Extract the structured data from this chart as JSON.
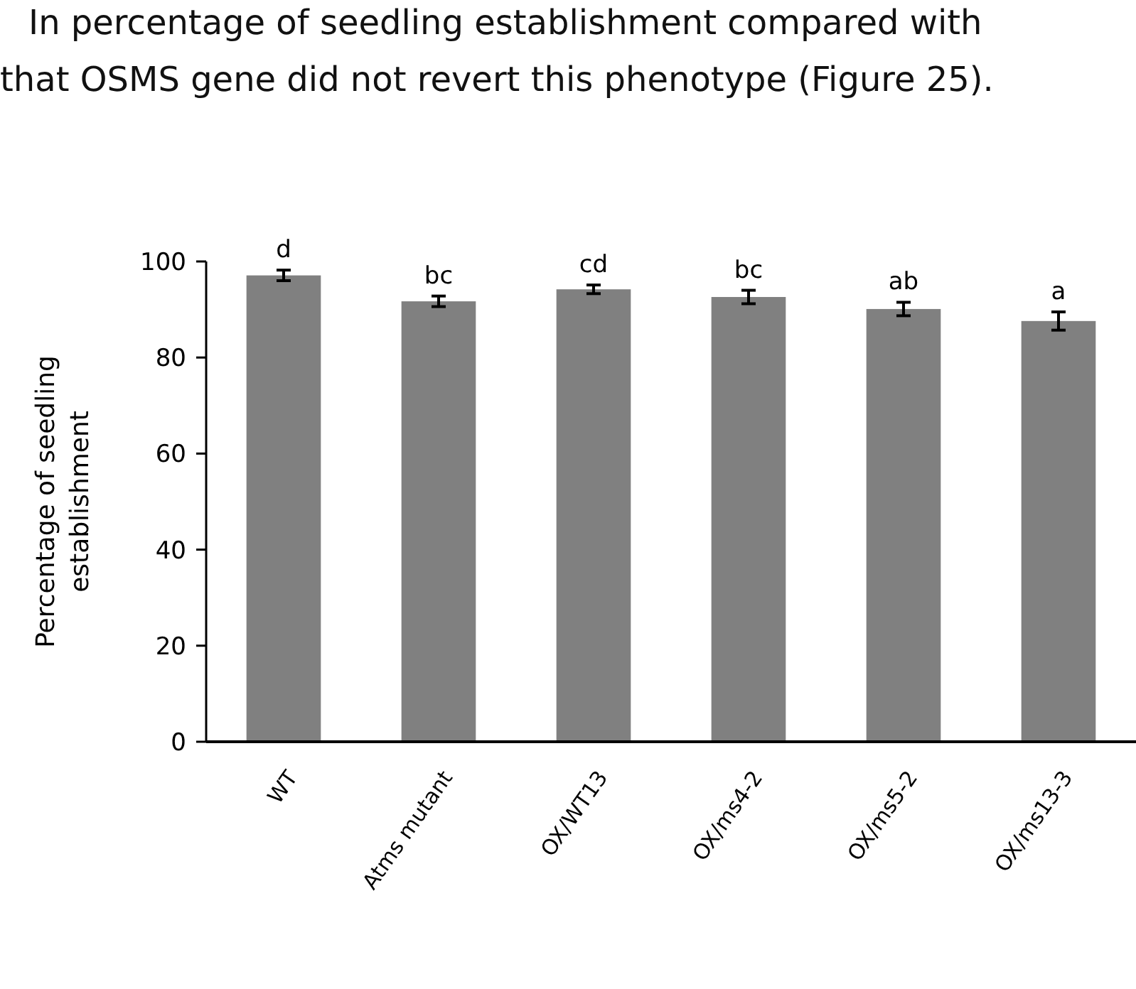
{
  "chart_data": {
    "type": "bar",
    "ylabel": "Percentage of seedling establishment",
    "categories": [
      "WT",
      "Atms mutant",
      "OX/WT13",
      "OX/ms4-2",
      "OX/ms5-2",
      "OX/ms13-3"
    ],
    "values": [
      97.1,
      91.7,
      94.2,
      92.6,
      90.1,
      87.6
    ],
    "errors": [
      1.1,
      1.1,
      0.9,
      1.4,
      1.4,
      1.9
    ],
    "color": "#808080",
    "ylim": [
      0,
      100
    ],
    "yticks": [
      0,
      20,
      40,
      60,
      80,
      100
    ],
    "grid": false,
    "annotations": [
      "In percentage of seedling establishment compared with",
      "that OSMS gene did not revert this phenotype (Figure 25).",
      {
        "text": "d",
        "x": "WT",
        "y": 98.2
      },
      {
        "text": "bc",
        "x": "Atms mutant",
        "y": 92.8
      },
      {
        "text": "cd",
        "x": "OX/WT13",
        "y": 95.1
      },
      {
        "text": "bc",
        "x": "OX/ms4-2",
        "y": 94
      },
      {
        "text": "ab",
        "x": "OX/ms5-2",
        "y": 91.5
      },
      {
        "text": "a",
        "x": "OX/ms13-3",
        "y": 89.5
      }
    ]
  }
}
